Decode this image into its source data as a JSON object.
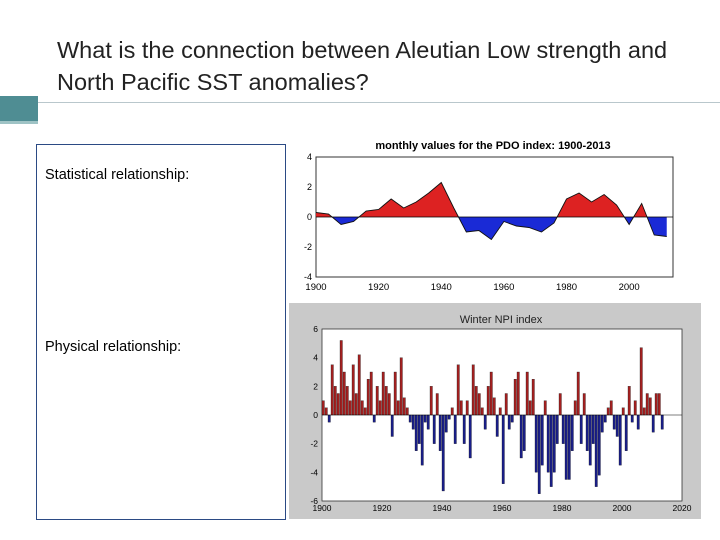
{
  "slide": {
    "title": "What is the connection between Aleutian Low strength and North Pacific SST anomalies?"
  },
  "content": {
    "statistical_label": "Statistical relationship:",
    "physical_label": "Physical relationship:"
  },
  "colors": {
    "accent": "#4f8d93",
    "positive": "#dd2222",
    "negative": "#1a2ad6",
    "npi_positive": "#a52020",
    "npi_negative": "#1a1f8a",
    "npi_background": "#c9c9c9"
  },
  "chart_data": [
    {
      "type": "area",
      "title": "monthly values for the PDO index: 1900-2013",
      "xlim": [
        1900,
        2014
      ],
      "ylim": [
        -4,
        4
      ],
      "xticks": [
        "1900",
        "1920",
        "1940",
        "1960",
        "1980",
        "2000"
      ],
      "yticks": [
        "4",
        "2",
        "0",
        "-2",
        "-4"
      ],
      "series": [
        {
          "x": [
            1900,
            1904,
            1908,
            1912,
            1916,
            1920,
            1924,
            1928,
            1932,
            1936,
            1940,
            1944,
            1948,
            1952,
            1956,
            1960,
            1964,
            1968,
            1972,
            1976,
            1980,
            1984,
            1988,
            1992,
            1996,
            2000,
            2004,
            2008,
            2012
          ],
          "values": [
            0.3,
            0.2,
            -0.5,
            -0.3,
            0.4,
            0.5,
            1.2,
            0.6,
            1.0,
            1.6,
            2.3,
            0.6,
            -1.0,
            -0.9,
            -1.5,
            -0.3,
            -0.6,
            -0.7,
            -1.0,
            -0.4,
            1.2,
            1.6,
            1.0,
            1.5,
            0.8,
            -0.5,
            0.9,
            -1.2,
            -1.3
          ]
        }
      ]
    },
    {
      "type": "bar",
      "title": "Winter NPI index",
      "xlim": [
        1900,
        2020
      ],
      "ylim": [
        -6,
        6
      ],
      "xticks": [
        "1900",
        "1920",
        "1940",
        "1960",
        "1980",
        "2000",
        "2020"
      ],
      "yticks": [
        "6",
        "4",
        "2",
        "0",
        "-2",
        "-4",
        "-6"
      ],
      "series": [
        {
          "x": [
            1900,
            1901,
            1902,
            1903,
            1904,
            1905,
            1906,
            1907,
            1908,
            1909,
            1910,
            1911,
            1912,
            1913,
            1914,
            1915,
            1916,
            1917,
            1918,
            1919,
            1920,
            1921,
            1922,
            1923,
            1924,
            1925,
            1926,
            1927,
            1928,
            1929,
            1930,
            1931,
            1932,
            1933,
            1934,
            1935,
            1936,
            1937,
            1938,
            1939,
            1940,
            1941,
            1942,
            1943,
            1944,
            1945,
            1946,
            1947,
            1948,
            1949,
            1950,
            1951,
            1952,
            1953,
            1954,
            1955,
            1956,
            1957,
            1958,
            1959,
            1960,
            1961,
            1962,
            1963,
            1964,
            1965,
            1966,
            1967,
            1968,
            1969,
            1970,
            1971,
            1972,
            1973,
            1974,
            1975,
            1976,
            1977,
            1978,
            1979,
            1980,
            1981,
            1982,
            1983,
            1984,
            1985,
            1986,
            1987,
            1988,
            1989,
            1990,
            1991,
            1992,
            1993,
            1994,
            1995,
            1996,
            1997,
            1998,
            1999,
            2000,
            2001,
            2002,
            2003,
            2004,
            2005,
            2006,
            2007,
            2008,
            2009,
            2010,
            2011,
            2012,
            2013
          ],
          "values": [
            1.0,
            0.5,
            -0.5,
            3.5,
            2.0,
            1.5,
            5.2,
            3.0,
            2.0,
            1.0,
            3.5,
            1.5,
            4.2,
            1.0,
            0.5,
            2.5,
            3.0,
            -0.5,
            2.0,
            1.0,
            3.0,
            2.0,
            1.5,
            -1.5,
            3.0,
            1.0,
            4.0,
            1.2,
            0.5,
            -0.5,
            -1.0,
            -2.5,
            -2.0,
            -3.5,
            -0.5,
            -1.0,
            2.0,
            -2.0,
            1.5,
            -2.5,
            -5.3,
            -1.2,
            -0.3,
            0.5,
            -2.0,
            3.5,
            1.0,
            -2.0,
            1.0,
            -3.0,
            3.5,
            2.0,
            1.5,
            0.5,
            -1.0,
            2.0,
            3.0,
            1.2,
            -1.5,
            0.5,
            -4.8,
            1.5,
            -1.0,
            -0.5,
            2.5,
            3.0,
            -3.0,
            -2.5,
            3.0,
            1.0,
            2.5,
            -4.0,
            -5.5,
            -3.5,
            1.0,
            -4.0,
            -5.0,
            -4.0,
            -2.0,
            1.5,
            -2.0,
            -4.5,
            -4.5,
            -2.5,
            1.0,
            3.0,
            -2.0,
            1.5,
            -2.5,
            -3.5,
            -2.0,
            -5.0,
            -4.2,
            -1.2,
            -0.5,
            0.5,
            1.0,
            -1.0,
            -1.5,
            -3.5,
            0.5,
            -2.5,
            2.0,
            -0.5,
            1.0,
            -1.0,
            4.7,
            0.5,
            1.5,
            1.2,
            -1.2,
            1.5,
            1.5,
            -1.0
          ]
        }
      ]
    }
  ]
}
